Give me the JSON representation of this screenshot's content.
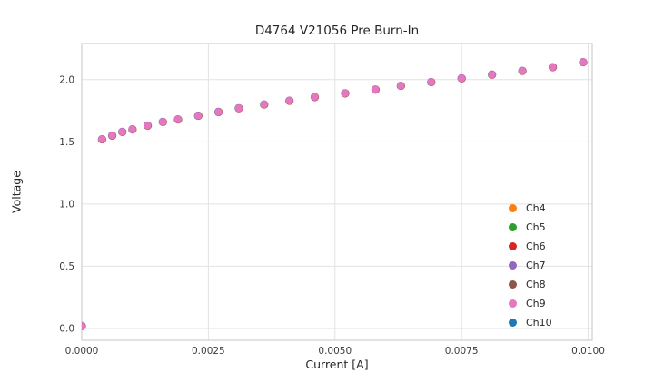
{
  "chart_data": {
    "type": "scatter",
    "title": "D4764 V21056 Pre Burn-In",
    "xlabel": "Current [A]",
    "ylabel": "Voltage",
    "xlim": [
      0,
      0.01008
    ],
    "ylim": [
      -0.095,
      2.29
    ],
    "grid": true,
    "legend_position": "lower right",
    "x_ticks": {
      "values": [
        0,
        0.0025,
        0.005,
        0.0075,
        0.01
      ],
      "labels": [
        "0.0000",
        "0.0025",
        "0.0050",
        "0.0075",
        "0.0100"
      ]
    },
    "y_ticks": {
      "values": [
        0,
        0.5,
        1.0,
        1.5,
        2.0
      ],
      "labels": [
        "0.0",
        "0.5",
        "1.0",
        "1.5",
        "2.0"
      ]
    },
    "x": [
      0.0,
      0.0004,
      0.0006,
      0.0008,
      0.001,
      0.0013,
      0.0016,
      0.0019,
      0.0023,
      0.0027,
      0.0031,
      0.0036,
      0.0041,
      0.0046,
      0.0052,
      0.0058,
      0.0063,
      0.0069,
      0.0075,
      0.0081,
      0.0087,
      0.0093,
      0.0099
    ],
    "y": [
      0.02,
      1.52,
      1.55,
      1.58,
      1.6,
      1.63,
      1.66,
      1.68,
      1.71,
      1.74,
      1.77,
      1.8,
      1.83,
      1.86,
      1.89,
      1.92,
      1.95,
      1.98,
      2.01,
      2.04,
      2.07,
      2.1,
      2.14
    ],
    "series": [
      {
        "name": "Ch4",
        "color": "#ff7f0e"
      },
      {
        "name": "Ch5",
        "color": "#2ca02c"
      },
      {
        "name": "Ch6",
        "color": "#d62728"
      },
      {
        "name": "Ch7",
        "color": "#9467bd"
      },
      {
        "name": "Ch8",
        "color": "#8c564b"
      },
      {
        "name": "Ch9",
        "color": "#e377c2"
      },
      {
        "name": "Ch10",
        "color": "#1f77b4"
      }
    ],
    "z_order": [
      "Ch10",
      "Ch4",
      "Ch5",
      "Ch6",
      "Ch7",
      "Ch8",
      "Ch9"
    ]
  }
}
